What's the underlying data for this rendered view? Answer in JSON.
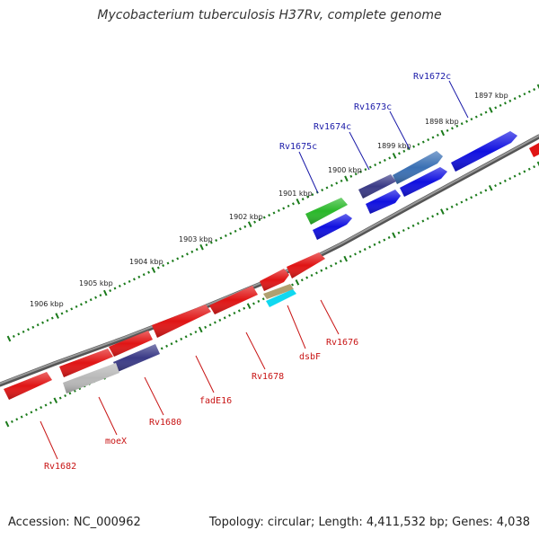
{
  "title": "Mycobacterium tuberculosis H37Rv, complete genome",
  "footer": {
    "accession": "Accession: NC_000962",
    "summary": "Topology: circular; Length: 4,411,532 bp; Genes: 4,038"
  },
  "colors": {
    "backbone": "#7a7a7a",
    "tick": "#1a7a1a",
    "plus_label": "#1a1aa8",
    "minus_label": "#c81414",
    "red": "#e01515",
    "blue": "#1010e0",
    "navy": "#3a3a86",
    "steel": "#3a70b4",
    "green": "#2ab82a",
    "gray": "#b8b8b8",
    "cyan": "#10d8f0",
    "khaki": "#b0a070"
  },
  "kbp_labels": [
    "1897 kbp",
    "1898 kbp",
    "1899 kbp",
    "1900 kbp",
    "1901 kbp",
    "1902 kbp",
    "1903 kbp",
    "1904 kbp",
    "1905 kbp",
    "1906 kbp"
  ],
  "plus_labels": [
    "Rv1672c",
    "Rv1673c",
    "Rv1674c",
    "Rv1675c"
  ],
  "minus_labels": [
    "Rv1676",
    "dsbF",
    "Rv1678",
    "fadE16",
    "Rv1680",
    "moeX",
    "Rv1682"
  ]
}
